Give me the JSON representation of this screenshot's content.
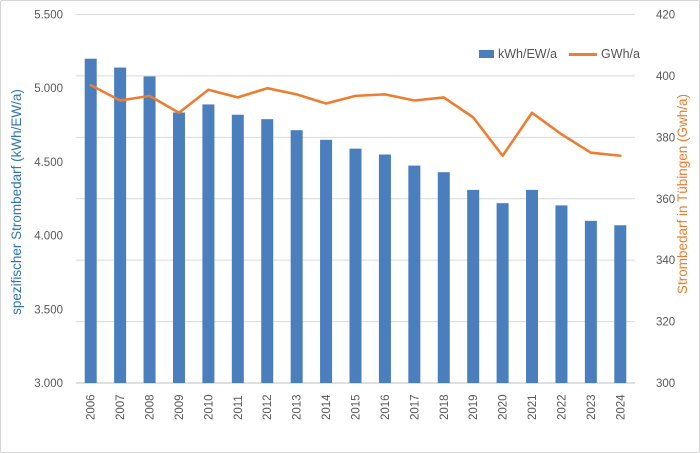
{
  "chart_data": {
    "type": "bar+line",
    "categories": [
      "2006",
      "2007",
      "2008",
      "2009",
      "2010",
      "2011",
      "2012",
      "2013",
      "2014",
      "2015",
      "2016",
      "2017",
      "2018",
      "2019",
      "2020",
      "2021",
      "2022",
      "2023",
      "2024"
    ],
    "series": [
      {
        "name": "kWh/EW/a",
        "type": "bar",
        "axis": "left",
        "color": "#4a7ebd",
        "values": [
          5200,
          5140,
          5080,
          4835,
          4890,
          4820,
          4790,
          4715,
          4650,
          4590,
          4550,
          4475,
          4430,
          4310,
          4220,
          4310,
          4205,
          4100,
          4070
        ]
      },
      {
        "name": "GWh/a",
        "type": "line",
        "axis": "right",
        "color": "#ed7d31",
        "values": [
          397,
          392,
          393.5,
          388,
          395.5,
          393,
          396,
          394,
          391,
          393.5,
          394,
          392,
          393,
          386.5,
          374,
          388,
          381,
          375,
          374
        ]
      }
    ],
    "left_axis": {
      "title": "spezifischer Strombedarf (kWh/EW/a)",
      "min": 3000,
      "max": 5500,
      "tick_labels": [
        "5.500",
        "5.000",
        "4.500",
        "4.000",
        "3.500",
        "3.000"
      ],
      "tick_values": [
        5500,
        5000,
        4500,
        4000,
        3500,
        3000
      ],
      "title_color": "#2e75b6",
      "tick_color": "#595959"
    },
    "right_axis": {
      "title": "Strombedarf in Tübingen (Gwh/a)",
      "min": 300,
      "max": 420,
      "tick_labels": [
        "420",
        "400",
        "380",
        "360",
        "340",
        "320",
        "300"
      ],
      "tick_values": [
        420,
        400,
        380,
        360,
        340,
        320,
        300
      ],
      "title_color": "#ed7d31",
      "tick_color": "#595959"
    },
    "x_axis": {
      "tick_color": "#595959",
      "label_rotation_deg": -90
    },
    "grid": {
      "horizontal_gridlines_follow": "right_axis",
      "gridline_color": "#d9d9d9",
      "axis_line_color": "#bfbfbf"
    },
    "legend": {
      "position": "top-right-inside",
      "items": [
        {
          "label": "kWh/EW/a",
          "marker": "bar",
          "color": "#4a7ebd"
        },
        {
          "label": "GWh/a",
          "marker": "line",
          "color": "#ed7d31"
        }
      ]
    }
  }
}
